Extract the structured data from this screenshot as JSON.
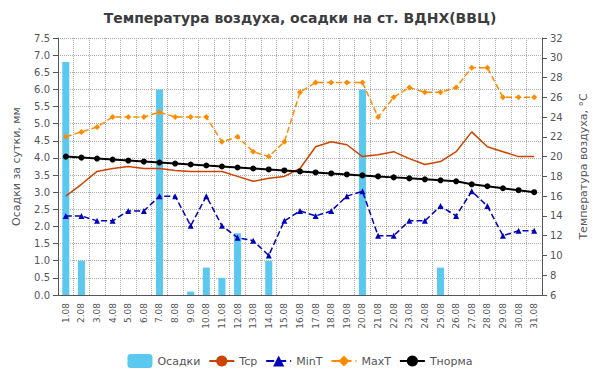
{
  "chart_data": {
    "type": "bar",
    "title": "Температура воздуха, осадки на ст. ВДНХ(ВВЦ)",
    "ylabel": "Осадки за сутки, мм",
    "y2label": "Температура воздуха, °С",
    "categories": [
      "1.08",
      "2.08",
      "3.08",
      "4.08",
      "5.08",
      "6.08",
      "7.08",
      "8.08",
      "9.08",
      "10.08",
      "11.08",
      "12.08",
      "13.08",
      "14.08",
      "15.08",
      "16.08",
      "17.08",
      "18.08",
      "19.08",
      "20.08",
      "21.08",
      "22.08",
      "23.08",
      "24.08",
      "25.08",
      "26.08",
      "27.08",
      "28.08",
      "29.08",
      "30.08",
      "31.08"
    ],
    "series": [
      {
        "name": "Осадки",
        "type": "bar",
        "color": "#5BC8F0",
        "values": [
          6.8,
          1.0,
          0,
          0,
          0,
          0,
          6.0,
          0,
          0.1,
          0.8,
          0.5,
          1.8,
          0,
          1.0,
          0,
          0,
          0,
          0,
          0,
          6.0,
          0,
          0,
          0,
          0,
          0.8,
          0,
          0,
          0,
          0,
          0,
          0
        ]
      },
      {
        "name": "Tcp",
        "type": "line",
        "axis": "y2",
        "color": "#CC4400",
        "line_style": "solid",
        "values": [
          16.0,
          17.2,
          18.5,
          18.8,
          19.0,
          18.8,
          18.8,
          18.6,
          18.5,
          18.5,
          18.5,
          18.0,
          17.5,
          17.8,
          18.0,
          18.8,
          21.0,
          21.5,
          21.2,
          20.0,
          20.2,
          20.5,
          19.8,
          19.2,
          19.5,
          20.5,
          22.5,
          21.0,
          20.5,
          20.0,
          20.0
        ]
      },
      {
        "name": "MinT",
        "type": "line",
        "axis": "y2",
        "color": "#0000BB",
        "line_style": "dashed",
        "marker": "triangle",
        "values": [
          14.0,
          14.0,
          13.5,
          13.5,
          14.5,
          14.5,
          16.0,
          16.0,
          13.0,
          16.0,
          13.0,
          11.8,
          11.5,
          10.0,
          13.5,
          14.5,
          14.0,
          14.5,
          16.0,
          16.5,
          12.0,
          12.0,
          13.5,
          13.5,
          15.0,
          14.0,
          16.5,
          15.0,
          12.0,
          12.5,
          12.5
        ]
      },
      {
        "name": "MaxT",
        "type": "line",
        "axis": "y2",
        "color": "#FF8C00",
        "line_style": "dashed",
        "marker": "diamond",
        "values": [
          22.0,
          22.5,
          23.0,
          24.0,
          24.0,
          24.0,
          24.5,
          24.0,
          24.0,
          24.0,
          21.5,
          22.0,
          20.5,
          20.0,
          21.5,
          26.5,
          27.5,
          27.5,
          27.5,
          27.5,
          24.0,
          26.0,
          27.0,
          26.5,
          26.5,
          27.0,
          29.0,
          29.0,
          26.0,
          26.0,
          26.0
        ]
      },
      {
        "name": "Тнорма",
        "type": "line",
        "axis": "y2",
        "color": "#000000",
        "line_style": "solid",
        "marker": "circle",
        "values": [
          20.0,
          19.9,
          19.8,
          19.7,
          19.6,
          19.5,
          19.4,
          19.3,
          19.2,
          19.1,
          19.0,
          18.9,
          18.8,
          18.7,
          18.6,
          18.5,
          18.4,
          18.3,
          18.2,
          18.1,
          18.0,
          17.9,
          17.8,
          17.7,
          17.6,
          17.5,
          17.2,
          17.0,
          16.8,
          16.6,
          16.4
        ]
      }
    ],
    "ylim": [
      0,
      7.5
    ],
    "yticks": [
      {
        "value": 0,
        "label": "0.0"
      },
      0.5,
      {
        "value": 1,
        "label": "1.0"
      },
      1.5,
      {
        "value": 2,
        "label": "2.0"
      },
      2.5,
      {
        "value": 3,
        "label": "3.0"
      },
      3.5,
      {
        "value": 4,
        "label": "4.0"
      },
      4.5,
      {
        "value": 5,
        "label": "5.0"
      },
      5.5,
      {
        "value": 6,
        "label": "6.0"
      },
      6.5,
      {
        "value": 7,
        "label": "7.0"
      },
      7.5
    ],
    "y2lim": [
      6,
      32
    ],
    "y2ticks": [
      6,
      8,
      10,
      12,
      14,
      16,
      18,
      20,
      22,
      24,
      26,
      28,
      30,
      32
    ],
    "grid": true,
    "legend": "bottom"
  }
}
